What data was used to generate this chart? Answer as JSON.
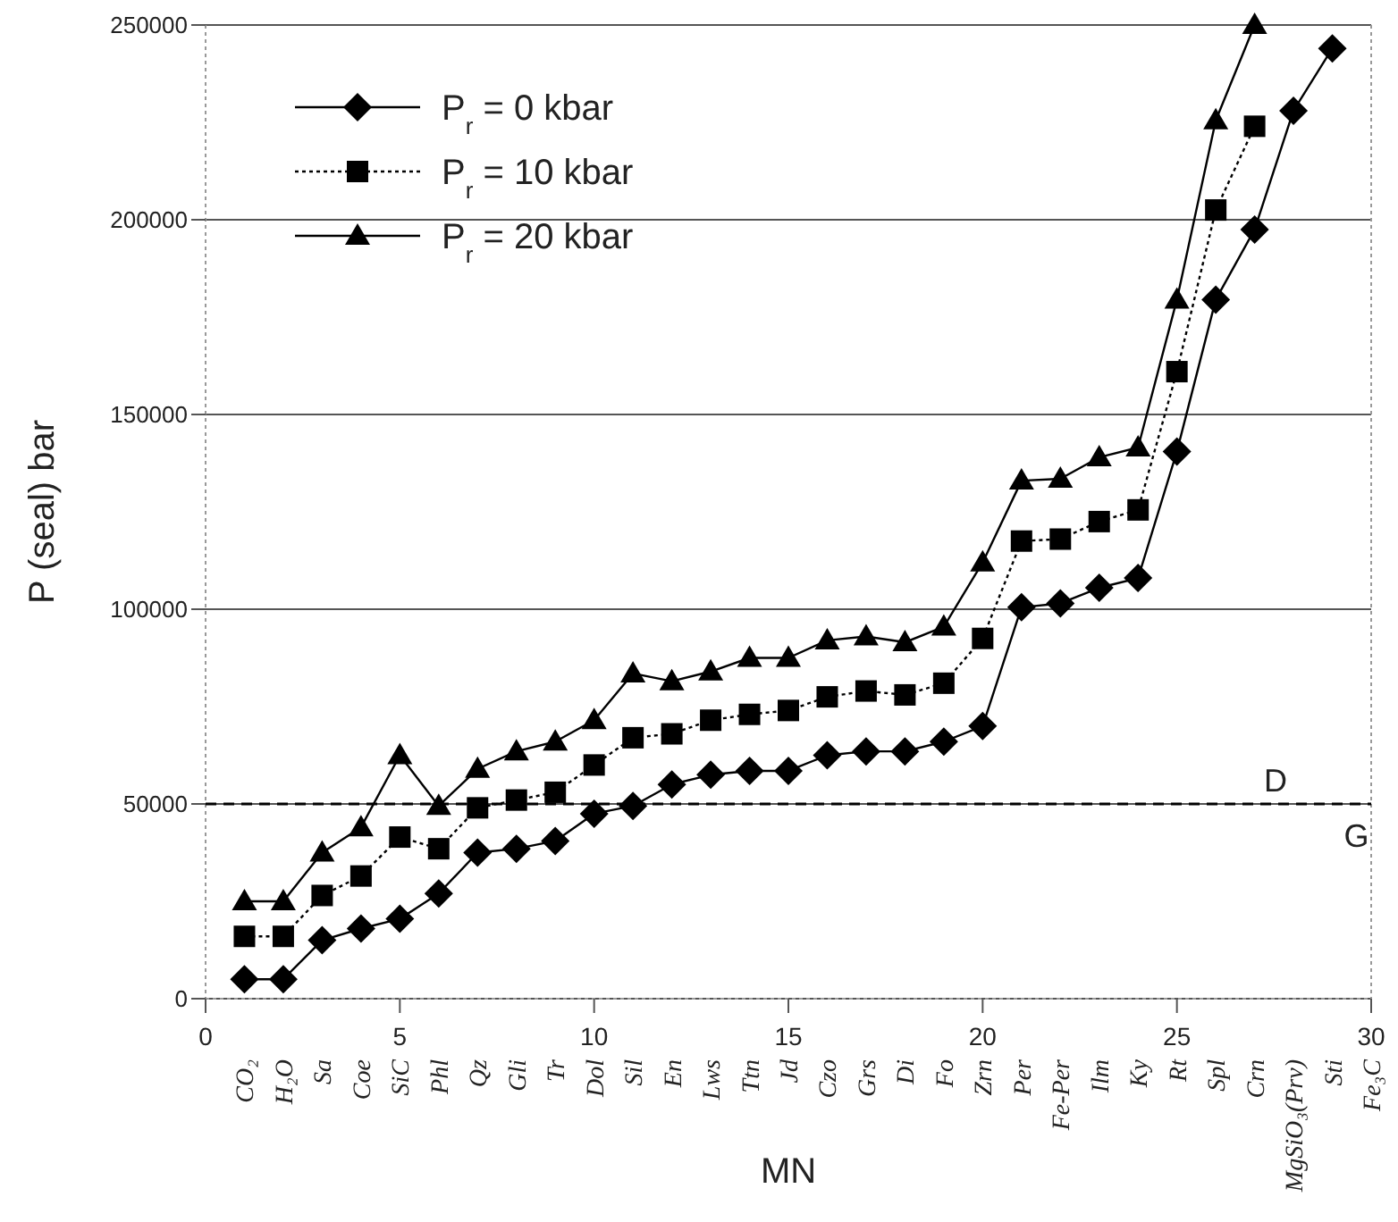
{
  "chart_data": {
    "type": "line",
    "xlabel": "MN",
    "ylabel": "P (seal) bar",
    "xlim": [
      0,
      30
    ],
    "xticks": [
      0,
      5,
      10,
      15,
      20,
      25,
      30
    ],
    "ylim": [
      0,
      250000
    ],
    "yticks": [
      0,
      50000,
      100000,
      150000,
      200000,
      250000
    ],
    "grid": "y",
    "legend": "top left",
    "x": [
      1,
      2,
      3,
      4,
      5,
      6,
      7,
      8,
      9,
      10,
      11,
      12,
      13,
      14,
      15,
      16,
      17,
      18,
      19,
      20,
      21,
      22,
      23,
      24,
      25,
      26,
      27,
      28,
      29
    ],
    "series": [
      {
        "name": "P$_{r}$ = 0 kbar",
        "color": "#000000",
        "marker": "diamond",
        "line_style": "solid",
        "values": [
          5000,
          5000,
          15000,
          18000,
          20500,
          27000,
          37500,
          38500,
          40500,
          47500,
          49500,
          55000,
          57500,
          58500,
          58500,
          62500,
          63500,
          63500,
          66000,
          70000,
          100500,
          101500,
          105500,
          108000,
          140500,
          179500,
          197500,
          228000,
          244000
        ]
      },
      {
        "name": "P$_{r}$ = 10 kbar",
        "color": "#000000",
        "marker": "square",
        "line_style": "dotted",
        "values": [
          16000,
          16000,
          26500,
          31500,
          41500,
          38500,
          49000,
          51000,
          53000,
          60000,
          67000,
          68000,
          71500,
          73000,
          74000,
          77500,
          79000,
          78000,
          81000,
          92500,
          117500,
          118000,
          122500,
          125500,
          161000,
          202500,
          224000,
          null,
          null
        ]
      },
      {
        "name": "P$_{r}$ = 20 kbar",
        "color": "#000000",
        "marker": "triangle",
        "line_style": "solid",
        "values": [
          25000,
          25000,
          37500,
          44000,
          62500,
          49500,
          59000,
          63500,
          66000,
          71500,
          83500,
          81500,
          84000,
          87500,
          87500,
          92000,
          93000,
          91500,
          95500,
          112000,
          133000,
          133500,
          139000,
          141500,
          179500,
          225500,
          250000,
          null,
          null
        ]
      }
    ],
    "ref_lines": [
      {
        "axis": "y",
        "value": 50000,
        "label": "D",
        "line_style": "dashed",
        "color": "#000000"
      }
    ],
    "annotations": [
      {
        "text": "G",
        "x": 29.3,
        "y": 50000
      },
      "CO₂",
      "H₂O",
      "Sa",
      "Coe",
      "SiC",
      "Phl",
      "Qz",
      "Gli",
      "Tr",
      "Dol",
      "Sil",
      "En",
      "Lws",
      "Ttn",
      "Jd",
      "Czo",
      "Grs",
      "Di",
      "Fo",
      "Zrn",
      "Per",
      "Fe-Per",
      "Ilm",
      "Ky",
      "Rt",
      "Spl",
      "Crn",
      "MgSiO₃(Prv)",
      "Sti",
      "Fe₃C"
    ]
  }
}
